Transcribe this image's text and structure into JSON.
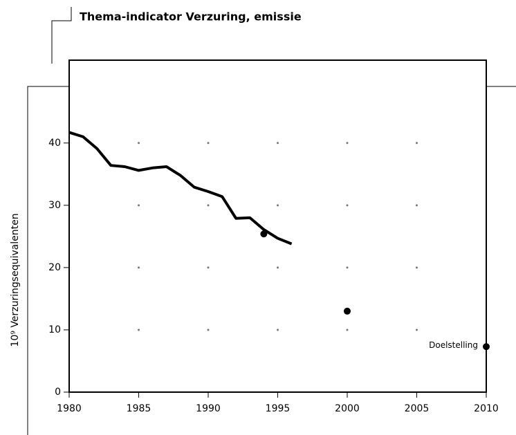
{
  "chart_data": {
    "type": "line",
    "title": "Thema-indicator Verzuring, emissie",
    "ylabel": "10⁹ Verzuringsequivalenten",
    "x": [
      1980,
      1981,
      1982,
      1983,
      1984,
      1985,
      1986,
      1987,
      1988,
      1989,
      1990,
      1991,
      1992,
      1993,
      1994,
      1995,
      1996
    ],
    "values": [
      41.7,
      41,
      39.1,
      36.4,
      36.2,
      35.6,
      36,
      36.2,
      34.8,
      32.9,
      32.2,
      31.4,
      27.9,
      28,
      26.1,
      24.7,
      23.8
    ],
    "color": "#000000",
    "targets": {
      "x": [
        1994,
        2000,
        2010
      ],
      "values": [
        25.4,
        13,
        7.3
      ]
    },
    "annotation": "Doelstelling",
    "xlim": [
      1980,
      2010
    ],
    "xticks": [
      1980,
      1985,
      1990,
      1995,
      2000,
      2005,
      2010
    ],
    "ylim": [
      0,
      53.3
    ],
    "yticks": [
      0,
      10,
      20,
      30,
      40
    ],
    "grid": true
  }
}
